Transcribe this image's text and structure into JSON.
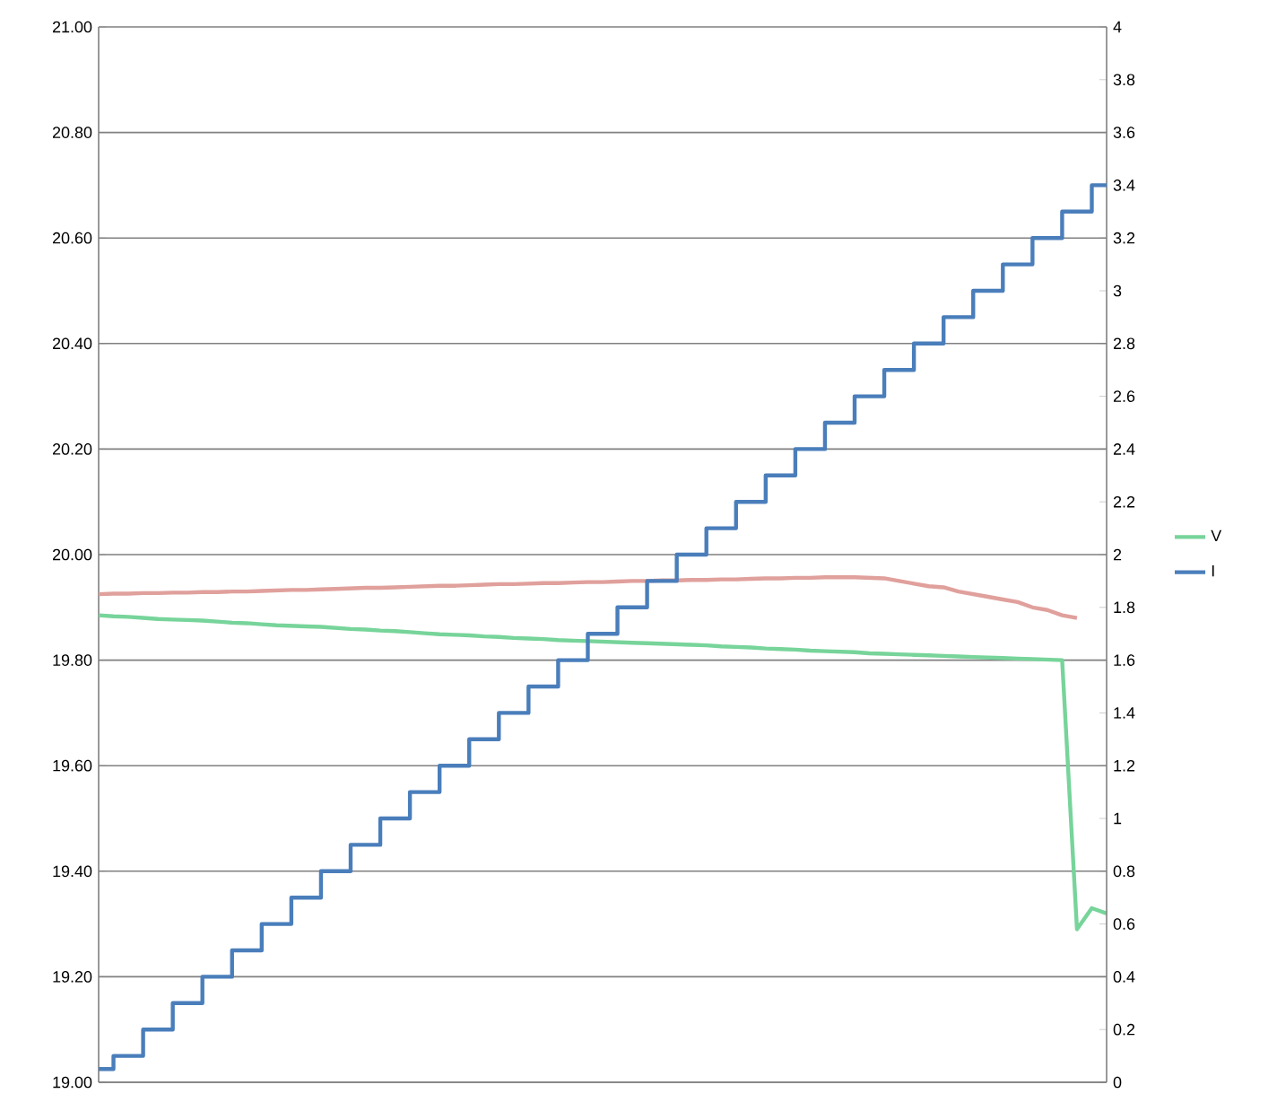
{
  "chart_data": {
    "type": "line",
    "categories": [
      null,
      null,
      null,
      null,
      null,
      null,
      null,
      null,
      null,
      null,
      null,
      null,
      null,
      null,
      null,
      null,
      null,
      null,
      null,
      null,
      null,
      null,
      null,
      null,
      null,
      null,
      null,
      null,
      null,
      null,
      null,
      null,
      null,
      null,
      null,
      null,
      null,
      null,
      null,
      null,
      null,
      null,
      null,
      null,
      null,
      null,
      null,
      null,
      null,
      null,
      null,
      null,
      null,
      null,
      null,
      null,
      null,
      null,
      null,
      null,
      null,
      null,
      null,
      null,
      null,
      null,
      null,
      null,
      null
    ],
    "series": [
      {
        "name": "V",
        "color": "#77d49a",
        "values": [
          19.885,
          19.883,
          19.882,
          19.88,
          19.878,
          19.877,
          19.876,
          19.875,
          19.873,
          19.871,
          19.87,
          19.868,
          19.866,
          19.865,
          19.864,
          19.863,
          19.861,
          19.859,
          19.858,
          19.856,
          19.855,
          19.853,
          19.851,
          19.849,
          19.848,
          19.847,
          19.845,
          19.844,
          19.842,
          19.841,
          19.84,
          19.838,
          19.837,
          19.836,
          19.835,
          19.834,
          19.833,
          19.832,
          19.831,
          19.83,
          19.829,
          19.828,
          19.826,
          19.825,
          19.824,
          19.822,
          19.821,
          19.82,
          19.818,
          19.817,
          19.816,
          19.815,
          19.813,
          19.812,
          19.811,
          19.81,
          19.809,
          19.808,
          19.807,
          19.806,
          19.805,
          19.804,
          19.803,
          19.802,
          19.801,
          19.8,
          19.29,
          19.33,
          19.32
        ]
      },
      {
        "type": "step",
        "axis": "y2",
        "name": "I",
        "color": "#4a7ebb",
        "values": [
          0.05,
          0.1,
          0.1,
          0.2,
          0.2,
          0.3,
          0.3,
          0.4,
          0.4,
          0.5,
          0.5,
          0.6,
          0.6,
          0.7,
          0.7,
          0.8,
          0.8,
          0.9,
          0.9,
          1.0,
          1.0,
          1.1,
          1.1,
          1.2,
          1.2,
          1.3,
          1.3,
          1.4,
          1.4,
          1.5,
          1.5,
          1.6,
          1.6,
          1.7,
          1.7,
          1.8,
          1.8,
          1.9,
          1.9,
          2.0,
          2.0,
          2.1,
          2.1,
          2.2,
          2.2,
          2.3,
          2.3,
          2.4,
          2.4,
          2.5,
          2.5,
          2.6,
          2.6,
          2.7,
          2.7,
          2.8,
          2.8,
          2.9,
          2.9,
          3.0,
          3.0,
          3.1,
          3.1,
          3.2,
          3.2,
          3.3,
          3.3,
          3.4,
          3.4
        ]
      },
      {
        "color": "#e0a09c",
        "values": [
          19.925,
          19.926,
          19.926,
          19.927,
          19.927,
          19.928,
          19.928,
          19.929,
          19.929,
          19.93,
          19.93,
          19.931,
          19.932,
          19.933,
          19.933,
          19.934,
          19.935,
          19.936,
          19.937,
          19.937,
          19.938,
          19.939,
          19.94,
          19.941,
          19.941,
          19.942,
          19.943,
          19.944,
          19.944,
          19.945,
          19.946,
          19.946,
          19.947,
          19.948,
          19.948,
          19.949,
          19.95,
          19.95,
          19.951,
          19.951,
          19.952,
          19.952,
          19.953,
          19.953,
          19.954,
          19.955,
          19.955,
          19.956,
          19.956,
          19.957,
          19.957,
          19.957,
          19.956,
          19.955,
          19.95,
          19.945,
          19.94,
          19.938,
          19.93,
          19.925,
          19.92,
          19.915,
          19.91,
          19.9,
          19.895,
          19.885,
          19.88,
          null,
          null
        ]
      }
    ],
    "ylim": [
      19.0,
      21.0
    ],
    "yticks": [
      {
        "value": 19.0,
        "label": "19.00"
      },
      {
        "value": 19.2,
        "label": "19.20"
      },
      {
        "value": 19.4,
        "label": "19.40"
      },
      {
        "value": 19.6,
        "label": "19.60"
      },
      {
        "value": 19.8,
        "label": "19.80"
      },
      {
        "value": 20.0,
        "label": "20.00"
      },
      {
        "value": 20.2,
        "label": "20.20"
      },
      {
        "value": 20.4,
        "label": "20.40"
      },
      {
        "value": 20.6,
        "label": "20.60"
      },
      {
        "value": 20.8,
        "label": "20.80"
      },
      {
        "value": 21.0,
        "label": "21.00"
      }
    ],
    "y2lim": [
      0,
      4
    ],
    "y2ticks": [
      0,
      0.2,
      0.4,
      0.6,
      0.8,
      1,
      1.2,
      1.4,
      1.6,
      1.8,
      2,
      2.2,
      2.4,
      2.6,
      2.8,
      3,
      3.2,
      3.4,
      3.6,
      3.8,
      4
    ],
    "grid": "y",
    "legend": "right",
    "tick_labels": "y",
    "marker": "none",
    "line_style": "solid"
  }
}
